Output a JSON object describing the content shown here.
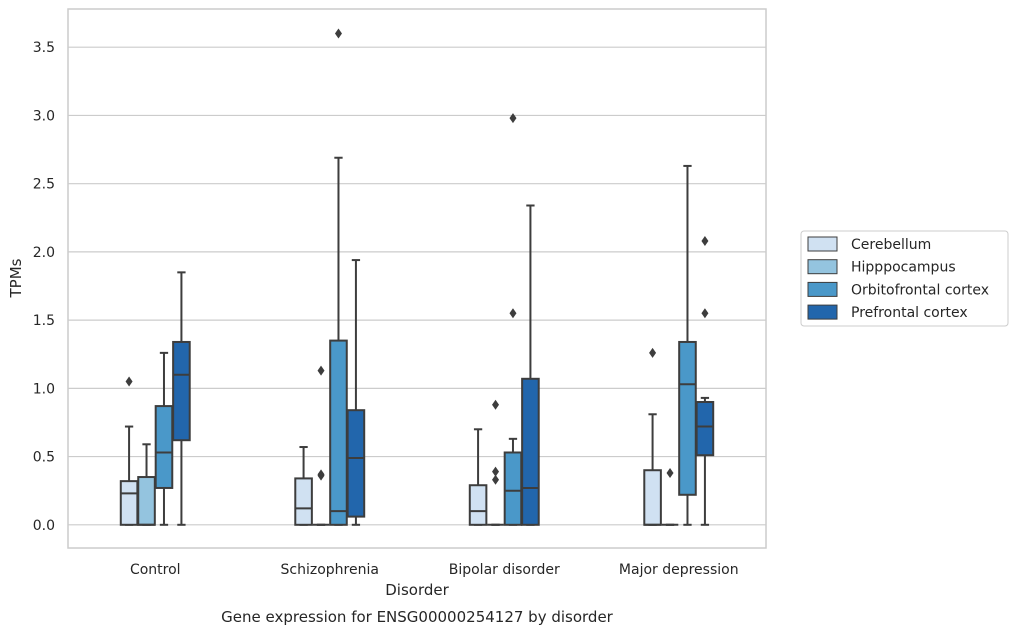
{
  "chart_data": {
    "type": "boxplot",
    "caption": "Gene expression for ENSG00000254127 by disorder",
    "xlabel": "Disorder",
    "ylabel": "TPMs",
    "ylim": [
      -0.17,
      3.78
    ],
    "yticks": [
      0.0,
      0.5,
      1.0,
      1.5,
      2.0,
      2.5,
      3.0,
      3.5
    ],
    "ytick_labels": [
      "0.0",
      "0.5",
      "1.0",
      "1.5",
      "2.0",
      "2.5",
      "3.0",
      "3.5"
    ],
    "grid": "horizontal",
    "legend_position": "right",
    "categories": [
      "Control",
      "Schizophrenia",
      "Bipolar disorder",
      "Major depression"
    ],
    "series": [
      {
        "name": "Cerebellum",
        "color": "#d0e1f2",
        "boxes": [
          {
            "whislo": 0.0,
            "q1": 0.0,
            "med": 0.23,
            "q3": 0.32,
            "whishi": 0.72,
            "fliers": [
              1.05
            ]
          },
          {
            "whislo": 0.0,
            "q1": 0.0,
            "med": 0.12,
            "q3": 0.34,
            "whishi": 0.57,
            "fliers": []
          },
          {
            "whislo": 0.0,
            "q1": 0.0,
            "med": 0.1,
            "q3": 0.29,
            "whishi": 0.7,
            "fliers": []
          },
          {
            "whislo": 0.0,
            "q1": 0.0,
            "med": 0.0,
            "q3": 0.4,
            "whishi": 0.81,
            "fliers": [
              1.26
            ]
          }
        ]
      },
      {
        "name": "Hipppocampus",
        "color": "#94c4df",
        "boxes": [
          {
            "whislo": 0.0,
            "q1": 0.0,
            "med": 0.0,
            "q3": 0.35,
            "whishi": 0.59,
            "fliers": []
          },
          {
            "whislo": 0.0,
            "q1": 0.0,
            "med": 0.0,
            "q3": 0.0,
            "whishi": 0.0,
            "fliers": [
              0.36,
              0.37,
              1.13
            ]
          },
          {
            "whislo": 0.0,
            "q1": 0.0,
            "med": 0.0,
            "q3": 0.0,
            "whishi": 0.0,
            "fliers": [
              0.33,
              0.39,
              0.88
            ]
          },
          {
            "whislo": 0.0,
            "q1": 0.0,
            "med": 0.0,
            "q3": 0.0,
            "whishi": 0.0,
            "fliers": [
              0.38
            ]
          }
        ]
      },
      {
        "name": "Orbitofrontal cortex",
        "color": "#4a98c9",
        "boxes": [
          {
            "whislo": 0.0,
            "q1": 0.27,
            "med": 0.53,
            "q3": 0.87,
            "whishi": 1.26,
            "fliers": []
          },
          {
            "whislo": 0.0,
            "q1": 0.0,
            "med": 0.1,
            "q3": 1.35,
            "whishi": 2.69,
            "fliers": [
              3.6
            ]
          },
          {
            "whislo": 0.0,
            "q1": 0.0,
            "med": 0.25,
            "q3": 0.53,
            "whishi": 0.63,
            "fliers": [
              1.55,
              2.98
            ]
          },
          {
            "whislo": 0.0,
            "q1": 0.22,
            "med": 1.03,
            "q3": 1.34,
            "whishi": 2.63,
            "fliers": []
          }
        ]
      },
      {
        "name": "Prefrontal cortex",
        "color": "#2266ac",
        "boxes": [
          {
            "whislo": 0.0,
            "q1": 0.62,
            "med": 1.1,
            "q3": 1.34,
            "whishi": 1.85,
            "fliers": []
          },
          {
            "whislo": 0.0,
            "q1": 0.06,
            "med": 0.49,
            "q3": 0.84,
            "whishi": 1.94,
            "fliers": []
          },
          {
            "whislo": 0.0,
            "q1": 0.0,
            "med": 0.27,
            "q3": 1.07,
            "whishi": 2.34,
            "fliers": []
          },
          {
            "whislo": 0.0,
            "q1": 0.51,
            "med": 0.72,
            "q3": 0.9,
            "whishi": 0.93,
            "fliers": [
              1.55,
              2.08
            ]
          }
        ]
      }
    ]
  }
}
